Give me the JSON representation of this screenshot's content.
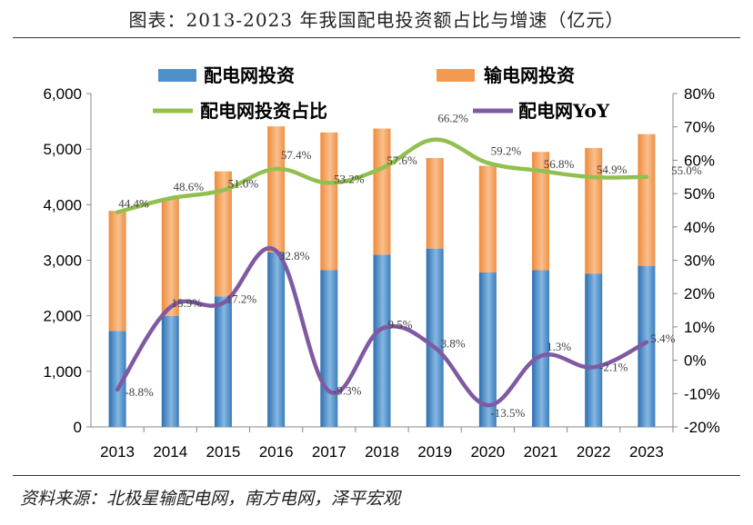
{
  "title": "图表：2013-2023 年我国配电投资额占比与增速（亿元）",
  "source": "资料来源：北极星输配电网，南方电网，泽平宏观",
  "colors": {
    "distribution_bar": "#4f90c8",
    "transmission_bar": "#f29a52",
    "share_line": "#92c050",
    "yoy_line": "#7f5aa2"
  },
  "chart_data": {
    "type": "bar",
    "categories": [
      "2013",
      "2014",
      "2015",
      "2016",
      "2017",
      "2018",
      "2019",
      "2020",
      "2021",
      "2022",
      "2023"
    ],
    "series": [
      {
        "name": "配电网投资",
        "kind": "stacked-bar",
        "axis": "left",
        "values": [
          1728,
          2000,
          2350,
          3140,
          2820,
          3100,
          3210,
          2780,
          2820,
          2760,
          2900
        ]
      },
      {
        "name": "输电网投资",
        "kind": "stacked-bar",
        "axis": "left",
        "values": [
          2160,
          2120,
          2250,
          2270,
          2480,
          2270,
          1630,
          1920,
          2130,
          2260,
          2370
        ]
      },
      {
        "name": "配电网投资占比",
        "kind": "line",
        "axis": "right",
        "values": [
          44.4,
          48.6,
          51.0,
          57.4,
          53.2,
          57.6,
          66.2,
          59.2,
          56.8,
          54.9,
          55.0
        ],
        "labels": [
          "44.4%",
          "48.6%",
          "51.0%",
          "57.4%",
          "53.2%",
          "57.6%",
          "66.2%",
          "59.2%",
          "56.8%",
          "54.9%",
          "55.0%"
        ]
      },
      {
        "name": "配电网YoY",
        "kind": "line",
        "axis": "right",
        "values": [
          -8.8,
          15.9,
          17.2,
          32.8,
          -9.3,
          9.5,
          3.8,
          -13.5,
          1.3,
          -2.1,
          5.4
        ],
        "labels": [
          "-8.8%",
          "15.9%",
          "17.2%",
          "32.8%",
          "-9.3%",
          "9.5%",
          "3.8%",
          "-13.5%",
          "1.3%",
          "-2.1%",
          "5.4%"
        ]
      }
    ],
    "y_left": {
      "min": 0,
      "max": 6000,
      "ticks": [
        "0",
        "1,000",
        "2,000",
        "3,000",
        "4,000",
        "5,000",
        "6,000"
      ]
    },
    "y_right": {
      "min": -20,
      "max": 80,
      "ticks": [
        "-20%",
        "-10%",
        "0%",
        "10%",
        "20%",
        "30%",
        "40%",
        "50%",
        "60%",
        "70%",
        "80%"
      ]
    },
    "legend_position": "top",
    "grid": false
  }
}
